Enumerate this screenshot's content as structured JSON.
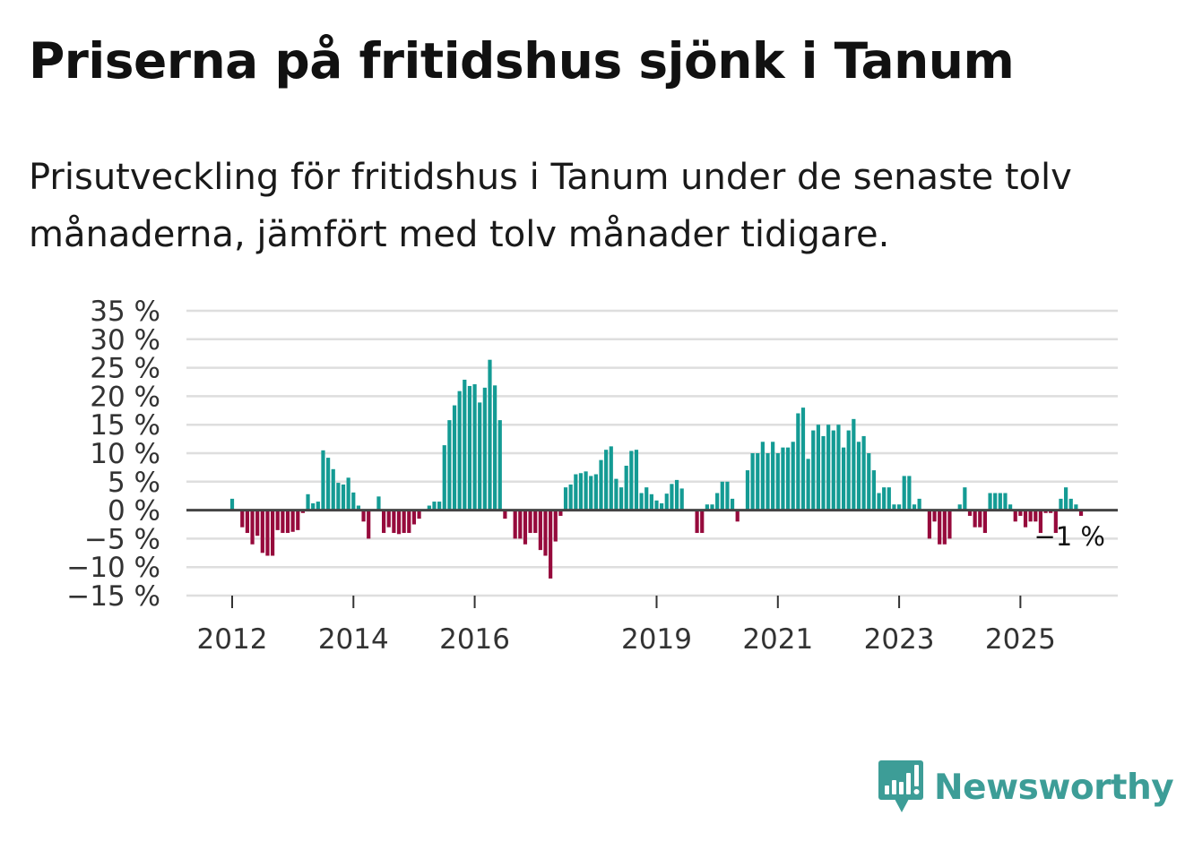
{
  "header": {
    "title": "Priserna på fritidshus sjönk i Tanum",
    "subtitle": "Prisutveckling för fritidshus i Tanum under de senaste tolv månaderna, jämfört med tolv månader tidigare."
  },
  "brand": {
    "name": "Newsworthy"
  },
  "colors": {
    "positive": "#149b94",
    "negative": "#960a3c",
    "grid": "#dedede",
    "zero_line": "#444444"
  },
  "chart_data": {
    "type": "bar",
    "title": "Priserna på fritidshus sjönk i Tanum",
    "xlabel": "",
    "ylabel": "",
    "ylim": [
      -15,
      35
    ],
    "yticks": [
      35,
      30,
      25,
      20,
      15,
      10,
      5,
      0,
      -5,
      -10,
      -15
    ],
    "ytick_labels": [
      "35 %",
      "30 %",
      "25 %",
      "20 %",
      "15 %",
      "10 %",
      "5 %",
      "0 %",
      "−5 %",
      "−10 %",
      "−15 %"
    ],
    "xticks": [
      2012,
      2014,
      2016,
      2019,
      2021,
      2023,
      2025
    ],
    "xtick_labels": [
      "2012",
      "2014",
      "2016",
      "2019",
      "2021",
      "2023",
      "2025"
    ],
    "start": "2012-01",
    "last_value_label": "−1 %",
    "values": [
      2,
      0,
      -3,
      -4,
      -6,
      -4.5,
      -7.5,
      -8,
      -8,
      -3.5,
      -4,
      -4,
      -3.8,
      -3.5,
      -0.5,
      2.8,
      1.2,
      1.5,
      10.5,
      9.2,
      7.2,
      4.8,
      4.5,
      5.7,
      3.1,
      0.8,
      -2,
      -5,
      0,
      2.4,
      -4,
      -3,
      -4,
      -4.2,
      -4,
      -4,
      -2.5,
      -1.5,
      0,
      0.8,
      1.5,
      1.5,
      11.4,
      15.8,
      18.4,
      20.9,
      22.9,
      21.8,
      22.1,
      18.9,
      21.5,
      26.4,
      21.9,
      15.8,
      -1.5,
      0,
      -5,
      -5,
      -6,
      -4,
      -4,
      -7,
      -8,
      -12,
      -5.5,
      -1,
      4,
      4.5,
      6.3,
      6.5,
      6.8,
      6,
      6.3,
      8.8,
      10.6,
      11.2,
      5.5,
      4,
      7.8,
      10.4,
      10.6,
      3,
      4,
      2.8,
      1.7,
      1.2,
      2.9,
      4.6,
      5.3,
      3.8,
      0,
      0,
      -4,
      -4,
      1,
      1,
      3,
      5,
      5,
      2,
      -2,
      0,
      7,
      10,
      10,
      12,
      10,
      12,
      10,
      11,
      11,
      12,
      17,
      18,
      9,
      14,
      15,
      13,
      15,
      14,
      15,
      11,
      14,
      16,
      12,
      13,
      10,
      7,
      3,
      4,
      4,
      1,
      1,
      6,
      6,
      1,
      2,
      0,
      -5,
      -2,
      -6,
      -6,
      -5,
      0,
      1,
      4,
      -1,
      -3,
      -3,
      -4,
      3,
      3,
      3,
      3,
      1,
      -2,
      -1,
      -3,
      -2,
      -2,
      -4,
      -0.5,
      -0.5,
      -4,
      2,
      4,
      2,
      1,
      -1
    ]
  }
}
